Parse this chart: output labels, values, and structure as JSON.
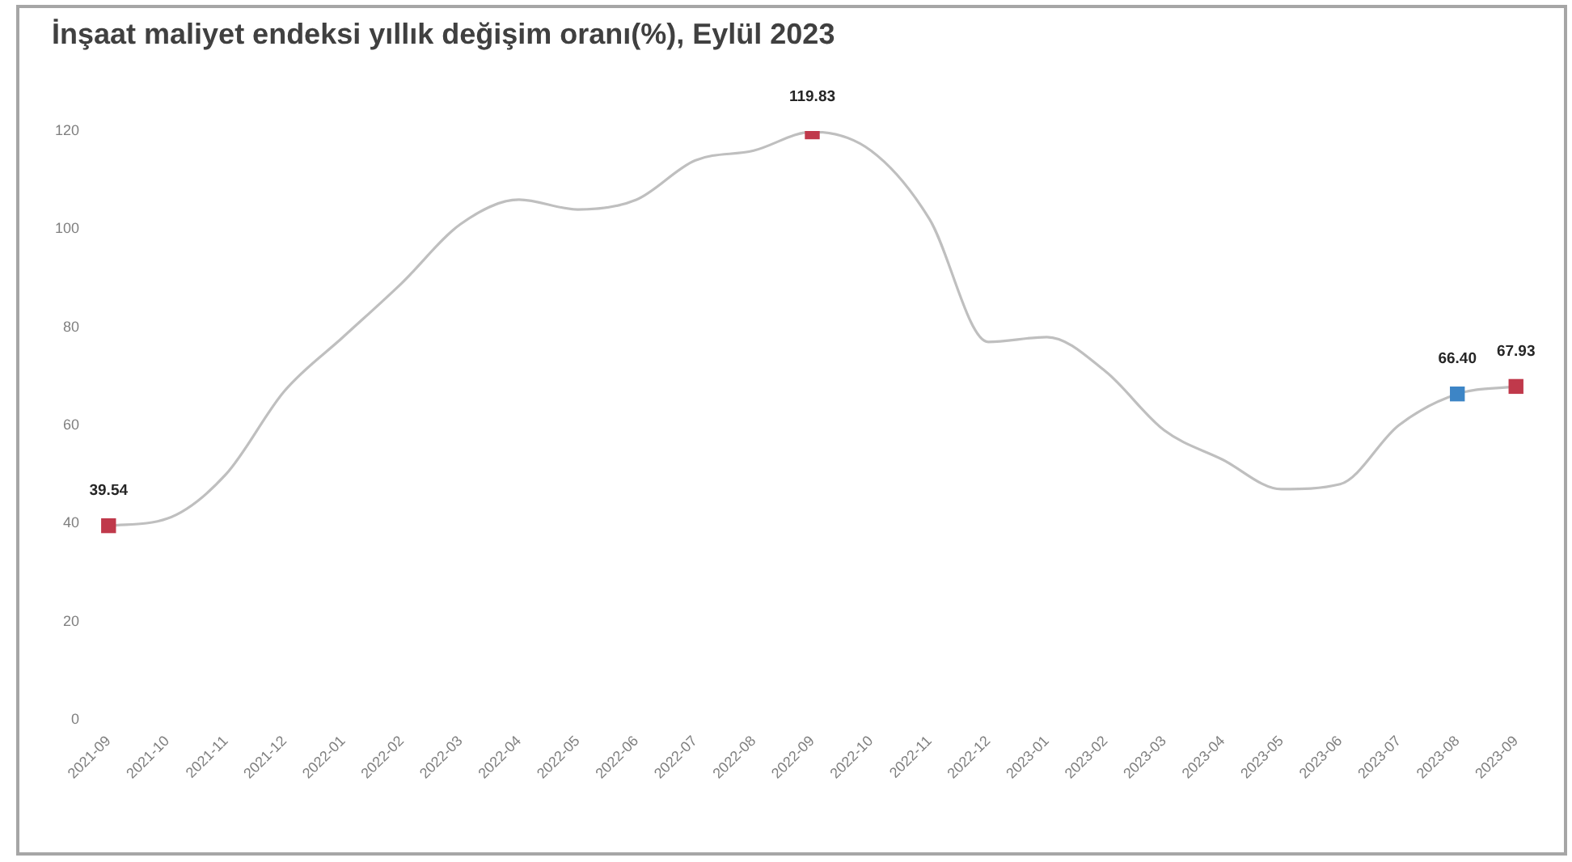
{
  "chart_data": {
    "type": "line",
    "title": "İnşaat maliyet endeksi yıllık değişim oranı(%), Eylül 2023",
    "categories": [
      "2021-09",
      "2021-10",
      "2021-11",
      "2021-12",
      "2022-01",
      "2022-02",
      "2022-03",
      "2022-04",
      "2022-05",
      "2022-06",
      "2022-07",
      "2022-08",
      "2022-09",
      "2022-10",
      "2022-11",
      "2022-12",
      "2023-01",
      "2023-02",
      "2023-03",
      "2023-04",
      "2023-05",
      "2023-06",
      "2023-07",
      "2023-08",
      "2023-09"
    ],
    "series": [
      {
        "color": "#bfbfbf",
        "marker": "none",
        "values": [
          39.54,
          41,
          50,
          67,
          78,
          89,
          101,
          106,
          104,
          106,
          114,
          116,
          119.83,
          116,
          102,
          77,
          78,
          71,
          59,
          53,
          47,
          48,
          60,
          66.4,
          67.93
        ],
        "value_labels": [
          "39.54",
          null,
          null,
          null,
          null,
          null,
          null,
          null,
          null,
          null,
          null,
          null,
          "119.83",
          null,
          null,
          null,
          null,
          null,
          null,
          null,
          null,
          null,
          null,
          "66.40",
          "67.93"
        ]
      },
      {
        "type": "scatter",
        "marker": "square",
        "colors": [
          "#c0394b",
          "#c0394b",
          "#c0394b",
          "#c0394b",
          "#c0394b",
          "#c0394b",
          "#c0394b",
          "#c0394b",
          "#c0394b",
          "#c0394b",
          "#c0394b",
          "#c0394b",
          "#c0394b",
          "#c0394b",
          "#c0394b",
          "#c0394b",
          "#c0394b",
          "#c0394b",
          "#c0394b",
          "#c0394b",
          "#c0394b",
          "#c0394b",
          "#c0394b",
          "#3d85c6",
          "#c0394b"
        ],
        "values": [
          39.54,
          null,
          null,
          null,
          null,
          null,
          null,
          null,
          null,
          null,
          null,
          null,
          119.83,
          null,
          null,
          null,
          null,
          null,
          null,
          null,
          null,
          null,
          null,
          66.4,
          67.93
        ]
      }
    ],
    "ylim": [
      0,
      120
    ],
    "yticks": [
      0,
      20,
      40,
      60,
      80,
      100,
      120
    ]
  }
}
